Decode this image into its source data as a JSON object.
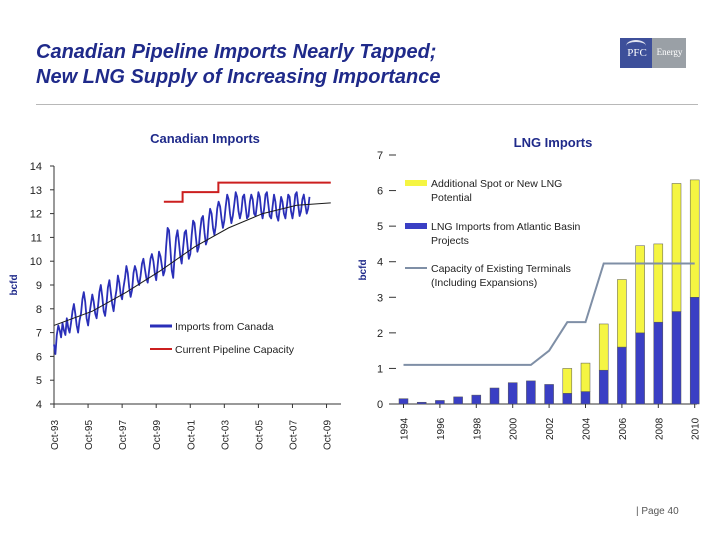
{
  "header": {
    "title_line1": "Canadian Pipeline Imports Nearly Tapped;",
    "title_line2": "New LNG Supply of Increasing Importance",
    "logo_left": "PFC",
    "logo_right": "Energy"
  },
  "footer": {
    "page_label": "| Page 40"
  },
  "colors": {
    "title": "#1f2a8a",
    "imports": "#2a2fb8",
    "capacity": "#cc1f1f",
    "lng_blue": "#3a3fc4",
    "lng_yellow": "#f5f542",
    "terminals": "#7f8fa6",
    "trend": "#1a1a1a"
  },
  "chart_data": [
    {
      "type": "line",
      "title": "Canadian Imports",
      "ylabel": "bcfd",
      "xlabel": "",
      "ylim": [
        4,
        14
      ],
      "yticks": [
        "4",
        "5",
        "6",
        "7",
        "8",
        "9",
        "10",
        "11",
        "12",
        "13",
        "14"
      ],
      "xticks": [
        "Oct-93",
        "Oct-95",
        "Oct-97",
        "Oct-99",
        "Oct-01",
        "Oct-03",
        "Oct-05",
        "Oct-07",
        "Oct-09"
      ],
      "xtick_years": [
        1993.75,
        1995.75,
        1997.75,
        1999.75,
        2001.75,
        2003.75,
        2005.75,
        2007.75,
        2009.75
      ],
      "xlim": [
        1993.75,
        2010.6
      ],
      "legend_placement": "center-right",
      "series": [
        {
          "name": "Imports from Canada",
          "monthly": true,
          "start_year": 1993.75,
          "values": [
            6.5,
            6.1,
            6.9,
            7.3,
            7.1,
            6.8,
            7.4,
            7.1,
            6.9,
            7.6,
            7.2,
            7.0,
            7.4,
            7.9,
            8.2,
            7.8,
            7.3,
            7.0,
            7.5,
            7.8,
            8.4,
            8.7,
            8.3,
            7.6,
            7.3,
            7.8,
            8.2,
            8.6,
            8.3,
            7.8,
            7.6,
            8.1,
            8.7,
            9.0,
            8.5,
            7.9,
            7.7,
            8.2,
            8.9,
            9.2,
            8.7,
            8.2,
            7.9,
            8.4,
            8.8,
            9.4,
            9.1,
            8.6,
            8.4,
            8.9,
            9.3,
            9.8,
            9.5,
            8.9,
            8.5,
            8.8,
            9.5,
            9.8,
            9.6,
            9.2,
            9.0,
            9.4,
            9.9,
            10.1,
            9.7,
            9.3,
            9.1,
            9.6,
            10.1,
            10.3,
            10.0,
            9.5,
            9.2,
            9.8,
            10.4,
            10.2,
            9.8,
            9.4,
            9.6,
            10.6,
            11.4,
            11.3,
            10.5,
            9.6,
            9.3,
            10.2,
            11.0,
            11.3,
            10.8,
            10.2,
            9.9,
            10.6,
            11.2,
            11.3,
            10.7,
            10.1,
            10.3,
            11.1,
            11.7,
            11.6,
            11.0,
            10.4,
            10.6,
            11.3,
            11.8,
            11.9,
            11.2,
            10.7,
            10.9,
            11.7,
            12.2,
            12.0,
            11.4,
            11.1,
            11.5,
            12.2,
            12.5,
            12.3,
            11.8,
            11.4,
            11.7,
            12.3,
            12.8,
            12.6,
            12.0,
            11.6,
            11.9,
            12.4,
            12.9,
            12.7,
            12.1,
            11.8,
            12.1,
            12.7,
            12.8,
            12.3,
            11.8,
            11.9,
            12.5,
            12.8,
            12.6,
            12.0,
            11.9,
            12.4,
            12.9,
            12.7,
            12.1,
            11.8,
            12.2,
            12.8,
            12.9,
            12.4,
            11.9,
            11.8,
            12.3,
            12.8,
            12.5,
            11.9,
            11.7,
            12.2,
            12.7,
            12.5,
            12.0,
            11.8,
            12.3,
            12.8,
            12.7,
            12.1,
            11.8,
            12.2,
            12.8,
            12.9,
            12.4,
            11.9,
            12.1,
            12.6,
            12.8,
            12.4,
            12.0,
            12.2,
            12.7
          ]
        },
        {
          "name": "Current Pipeline Capacity",
          "x": [
            2000.2,
            2001.3,
            2001.3,
            2003.4,
            2003.4,
            2010.0
          ],
          "y": [
            12.5,
            12.5,
            12.9,
            12.9,
            13.3,
            13.3
          ]
        },
        {
          "name": "",
          "trend": true,
          "x": [
            1993.75,
            1996.0,
            1998.0,
            2000.0,
            2002.0,
            2004.0,
            2006.0,
            2008.0,
            2010.0
          ],
          "y": [
            7.3,
            7.9,
            8.7,
            9.6,
            10.6,
            11.4,
            12.0,
            12.35,
            12.45
          ]
        }
      ]
    },
    {
      "type": "bar",
      "title": "LNG Imports",
      "ylabel": "bcfd",
      "xlabel": "",
      "ylim": [
        0,
        7
      ],
      "yticks": [
        "0",
        "1",
        "2",
        "3",
        "4",
        "5",
        "6",
        "7"
      ],
      "xticks": [
        "1994",
        "1996",
        "1998",
        "2000",
        "2002",
        "2004",
        "2006",
        "2008",
        "2010"
      ],
      "categories": [
        "1994",
        "1995",
        "1996",
        "1997",
        "1998",
        "1999",
        "2000",
        "2001",
        "2002",
        "2003",
        "2004",
        "2005",
        "2006",
        "2007",
        "2008",
        "2009",
        "2010"
      ],
      "stacked": true,
      "legend_placement": "top-right",
      "series": [
        {
          "name": "LNG Imports from Atlantic Basin Projects",
          "values": [
            0.15,
            0.05,
            0.1,
            0.2,
            0.25,
            0.45,
            0.6,
            0.65,
            0.55,
            0.3,
            0.35,
            0.95,
            1.6,
            2.0,
            2.3,
            2.6,
            3.0
          ]
        },
        {
          "name": "Additional Spot or New LNG Potential",
          "values": [
            0,
            0,
            0,
            0,
            0,
            0,
            0,
            0,
            0,
            0.7,
            0.8,
            1.3,
            1.9,
            2.45,
            2.2,
            3.6,
            3.3
          ]
        },
        {
          "name": "Capacity of Existing Terminals (Including Expansions)",
          "line": true,
          "x": [
            1994,
            2000,
            2001,
            2002,
            2003,
            2004,
            2005,
            2010
          ],
          "y": [
            1.1,
            1.1,
            1.1,
            1.5,
            2.3,
            2.3,
            3.95,
            3.95
          ]
        }
      ]
    }
  ]
}
